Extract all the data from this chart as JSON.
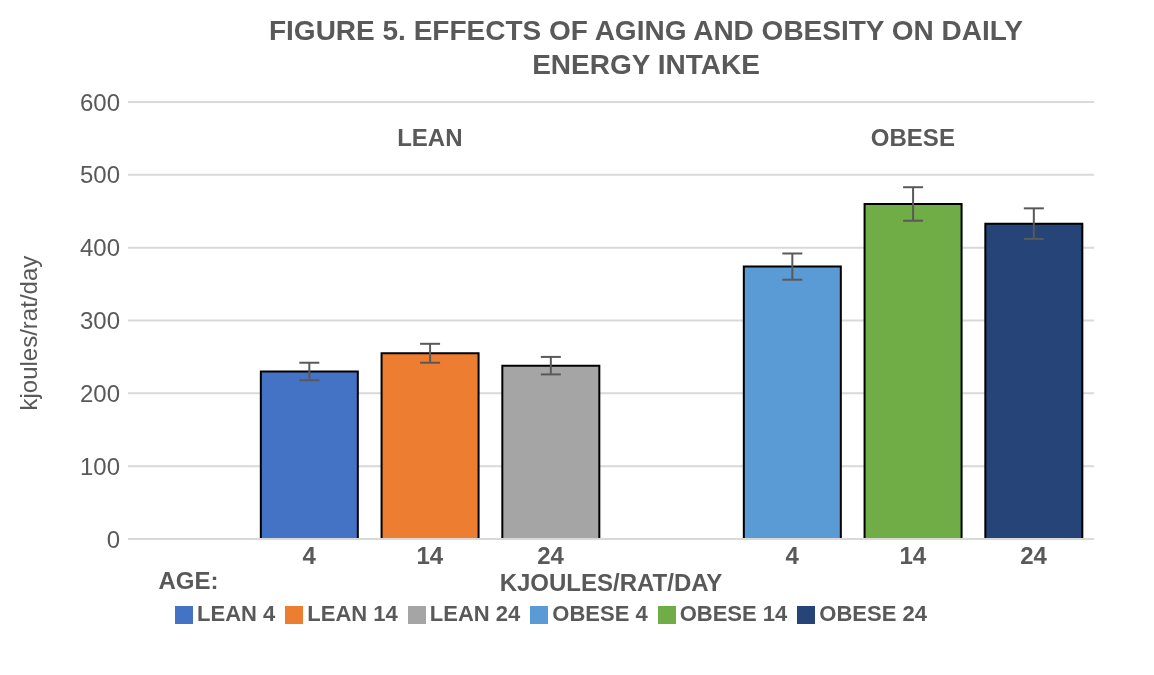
{
  "chart_data": {
    "type": "bar",
    "title": "FIGURE  5. EFFECTS OF AGING AND OBESITY ON DAILY ENERGY INTAKE",
    "xlabel": "KJOULES/RAT/DAY",
    "ylabel": "kjoules/rat/day",
    "annotations": [
      "LEAN",
      "OBESE",
      "AGE:"
    ],
    "categories": [
      null,
      "4",
      "14",
      "24",
      null,
      "4",
      "14",
      "24"
    ],
    "stacked": true,
    "series": [
      {
        "name": "LEAN 4",
        "color": "#4472c4",
        "values": [
          null,
          230,
          null,
          null,
          null,
          null,
          null,
          null
        ],
        "errors": [
          null,
          12,
          null,
          null,
          null,
          null,
          null,
          null
        ]
      },
      {
        "name": "LEAN 14",
        "color": "#ed7d31",
        "values": [
          null,
          null,
          255,
          null,
          null,
          null,
          null,
          null
        ],
        "errors": [
          null,
          null,
          13,
          null,
          null,
          null,
          null,
          null
        ]
      },
      {
        "name": "LEAN 24",
        "color": "#a5a5a5",
        "values": [
          null,
          null,
          null,
          238,
          null,
          null,
          null,
          null
        ],
        "errors": [
          null,
          null,
          null,
          12,
          null,
          null,
          null,
          null
        ]
      },
      {
        "name": "OBESE 4",
        "color": "#5b9bd5",
        "values": [
          null,
          null,
          null,
          null,
          null,
          374,
          null,
          null
        ],
        "errors": [
          null,
          null,
          null,
          null,
          null,
          18,
          null,
          null
        ]
      },
      {
        "name": "OBESE 14",
        "color": "#70ad47",
        "values": [
          null,
          null,
          null,
          null,
          null,
          null,
          460,
          null
        ],
        "errors": [
          null,
          null,
          null,
          null,
          null,
          null,
          23,
          null
        ]
      },
      {
        "name": "OBESE 24",
        "color": "#264478",
        "values": [
          null,
          null,
          null,
          null,
          null,
          null,
          null,
          433
        ],
        "errors": [
          null,
          null,
          null,
          null,
          null,
          null,
          null,
          21
        ]
      }
    ],
    "ylim": [
      0,
      600
    ],
    "yticks": [
      0,
      100,
      200,
      300,
      400,
      500,
      600
    ],
    "grid": "y",
    "legend": "bottom"
  }
}
